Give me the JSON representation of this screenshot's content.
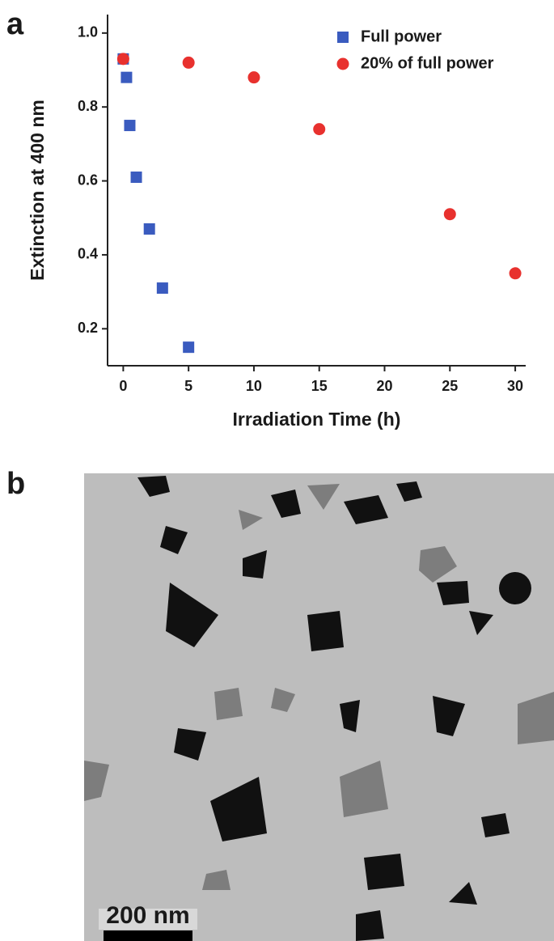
{
  "panel_labels": [
    "a",
    "b"
  ],
  "chart_data": {
    "type": "scatter",
    "x_label": "Irradiation Time (h)",
    "y_label": "Extinction at 400 nm",
    "xlim": [
      -1.2,
      30.8
    ],
    "ylim": [
      0.1,
      1.05
    ],
    "xticks": [
      0,
      5,
      10,
      15,
      20,
      25,
      30
    ],
    "yticks": [
      0.2,
      0.4,
      0.6,
      0.8,
      {
        "value": 1,
        "label": "1.0"
      }
    ],
    "legend": "upper right",
    "series": [
      {
        "name": "Full power",
        "color": "#3a5bbf",
        "marker": "square",
        "x": [
          0,
          0.25,
          0.5,
          1,
          2,
          3,
          5
        ],
        "values": [
          0.93,
          0.88,
          0.75,
          0.61,
          0.47,
          0.31,
          0.15
        ]
      },
      {
        "name": "20% of full power",
        "color": "#e8312e",
        "marker": "circle",
        "x": [
          0,
          5,
          10,
          15,
          25,
          30
        ],
        "values": [
          0.93,
          0.92,
          0.88,
          0.74,
          0.51,
          0.35
        ]
      }
    ]
  },
  "micrograph": {
    "scale_bar": "200 nm"
  }
}
